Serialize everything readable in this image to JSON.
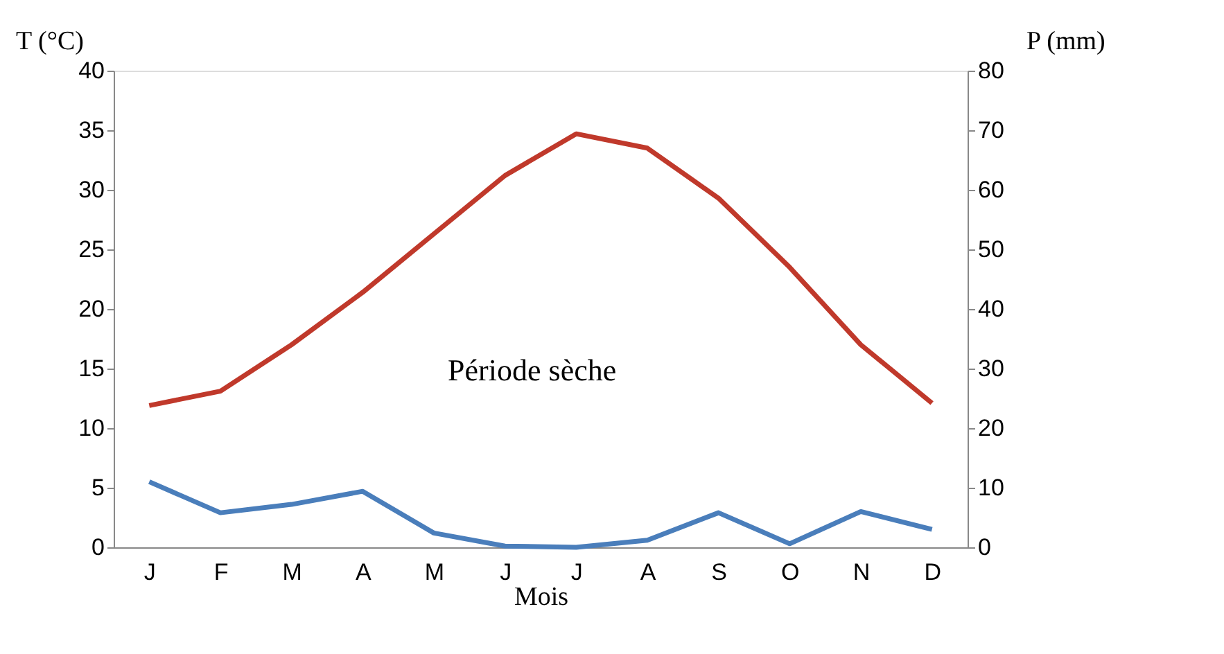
{
  "chart_data": {
    "type": "line",
    "categories": [
      "J",
      "F",
      "M",
      "A",
      "M",
      "J",
      "J",
      "A",
      "S",
      "O",
      "N",
      "D"
    ],
    "xlabel": "Mois",
    "ylabel": "T (°C)",
    "y2label": "P (mm)",
    "series": [
      {
        "color": "#c0392b",
        "values": [
          11.9,
          13.1,
          17.0,
          21.4,
          26.3,
          31.2,
          34.7,
          33.5,
          29.3,
          23.5,
          17.0,
          12.1
        ]
      },
      {
        "color": "#4a7ebb",
        "axis": "y2",
        "values": [
          11,
          5.8,
          7.2,
          9.4,
          2.4,
          0.2,
          0,
          1.2,
          5.8,
          0.6,
          6,
          3
        ]
      }
    ],
    "ylim": [
      0,
      40
    ],
    "yticks": [
      0,
      5,
      10,
      15,
      20,
      25,
      30,
      35,
      40
    ],
    "y2lim": [
      0,
      80
    ],
    "y2ticks": [
      0,
      10,
      20,
      30,
      40,
      50,
      60,
      70,
      80
    ],
    "annotations": [
      "Période sèche"
    ],
    "grid": false,
    "marker": "none",
    "line_style": "solid"
  }
}
